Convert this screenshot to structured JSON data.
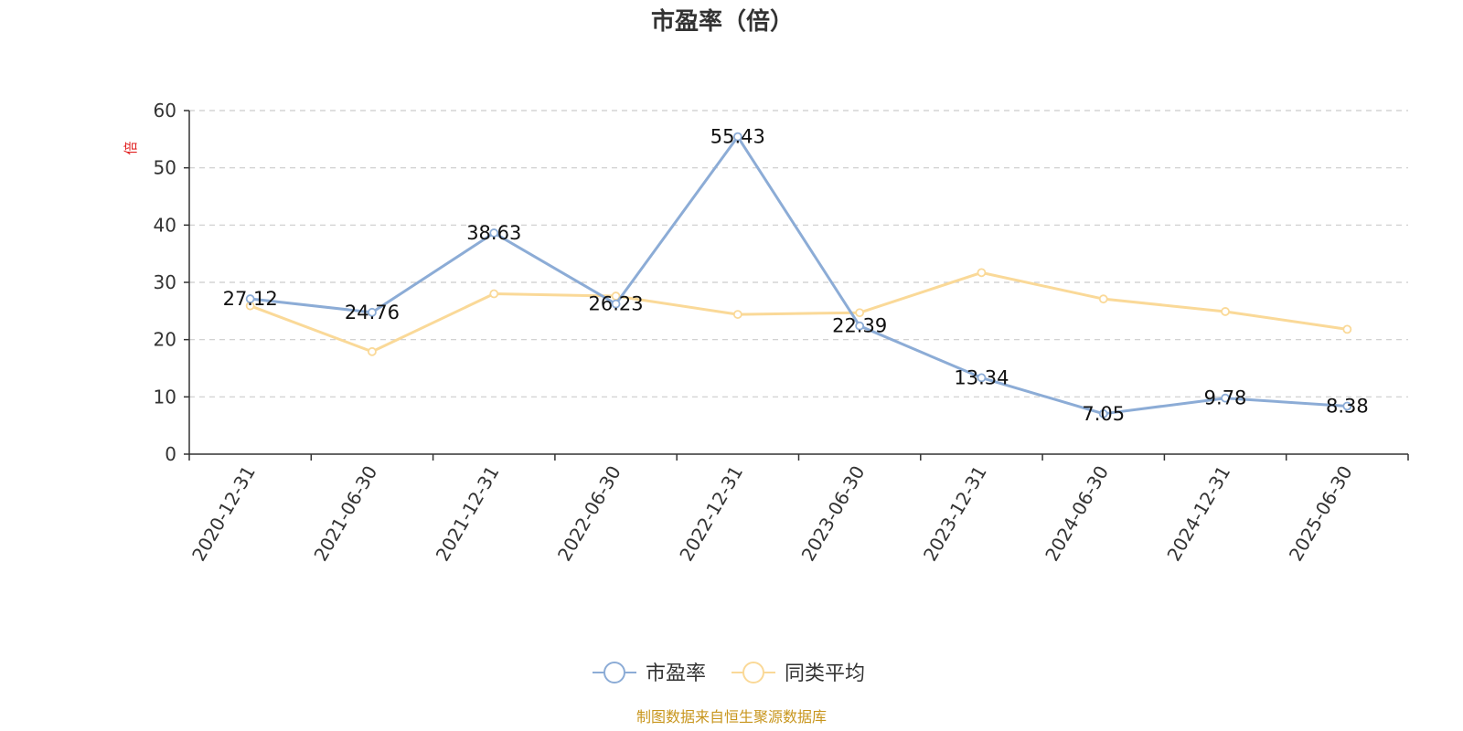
{
  "chart_data": {
    "type": "line",
    "title": "市盈率（倍）",
    "ylabel": "倍",
    "xlabel": "",
    "ylim": [
      0,
      60
    ],
    "yticks": [
      0,
      10,
      20,
      30,
      40,
      50,
      60
    ],
    "grid": true,
    "legend_position": "bottom",
    "categories": [
      "2020-12-31",
      "2021-06-30",
      "2021-12-31",
      "2022-06-30",
      "2022-12-31",
      "2023-06-30",
      "2023-12-31",
      "2024-06-30",
      "2024-12-31",
      "2025-06-30"
    ],
    "series": [
      {
        "name": "市盈率",
        "color": "#8cacd6",
        "values": [
          27.12,
          24.76,
          38.63,
          26.23,
          55.43,
          22.39,
          13.34,
          7.05,
          9.78,
          8.38
        ],
        "labels": [
          "27.12",
          "24.76",
          "38.63",
          "26.23",
          "55.43",
          "22.39",
          "13.34",
          "7.05",
          "9.78",
          "8.38"
        ]
      },
      {
        "name": "同类平均",
        "color": "#fad998",
        "values": [
          25.9,
          17.9,
          28.0,
          27.6,
          24.4,
          24.7,
          31.7,
          27.1,
          24.9,
          21.8
        ]
      }
    ],
    "source": "制图数据来自恒生聚源数据库"
  }
}
